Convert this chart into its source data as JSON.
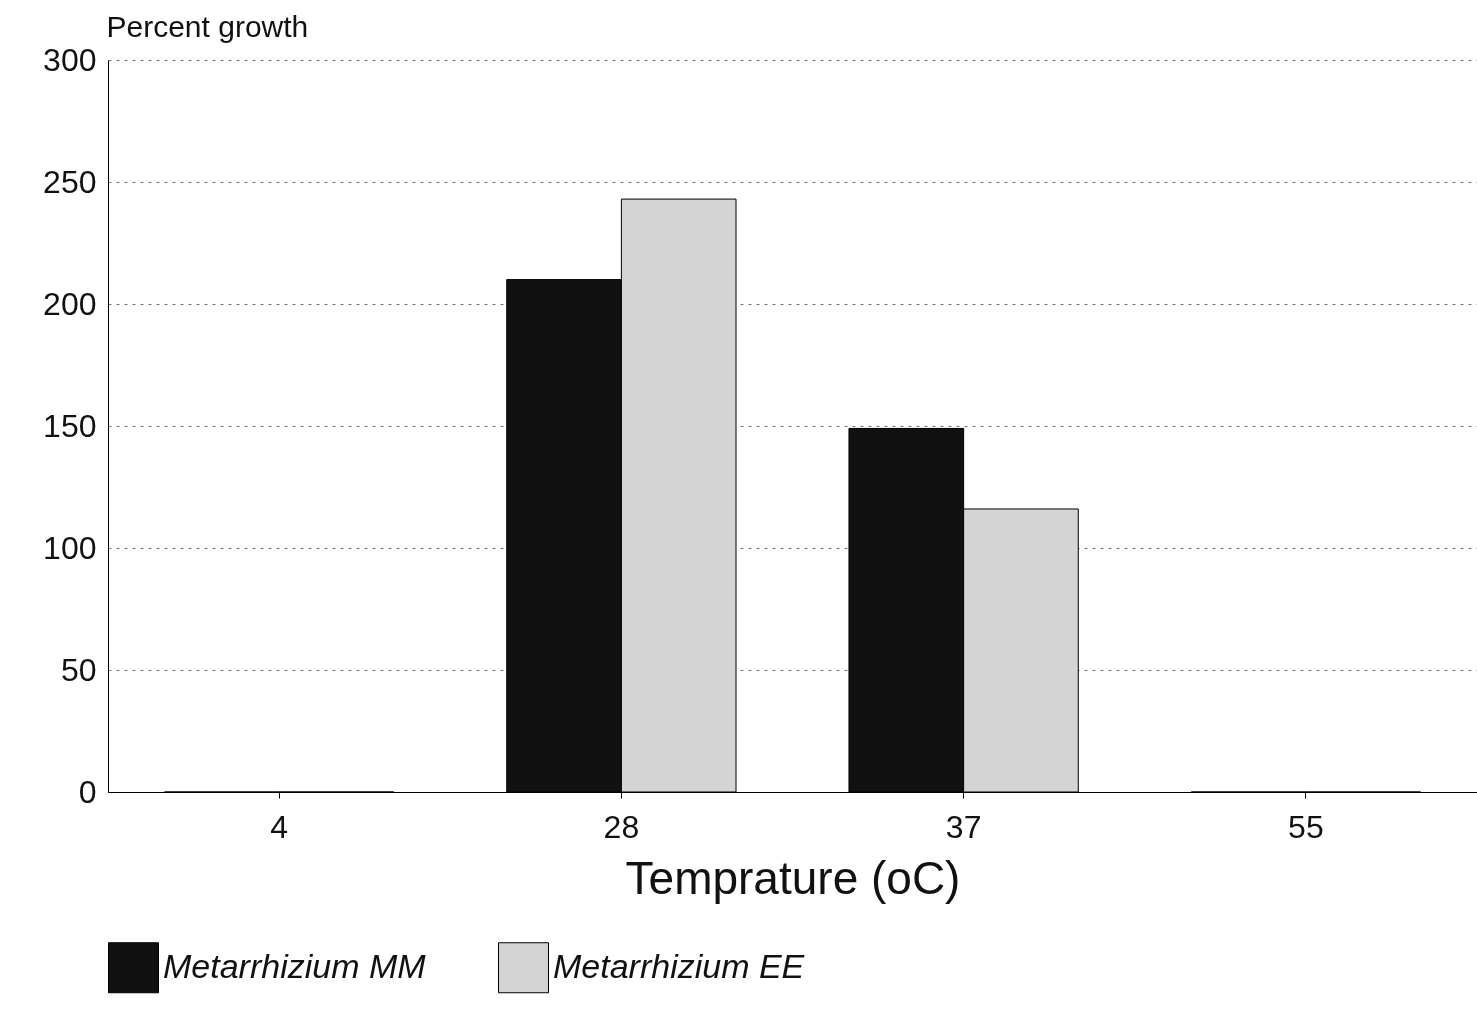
{
  "chart_data": {
    "type": "bar",
    "ylabel": "Percent growth",
    "xlabel": "Temprature (oC)",
    "categories": [
      "4",
      "28",
      "37",
      "55"
    ],
    "series": [
      {
        "name": "Metarrhizium MM",
        "color": "#111111",
        "values": [
          0,
          210,
          149,
          0
        ]
      },
      {
        "name": "Metarrhizium EE",
        "color": "#d4d4d4",
        "values": [
          0,
          243,
          116,
          0
        ]
      }
    ],
    "ylim": [
      0,
      300
    ],
    "yticks": [
      0,
      50,
      100,
      150,
      200,
      250,
      300
    ],
    "grid": "y",
    "legend": "bottom"
  }
}
